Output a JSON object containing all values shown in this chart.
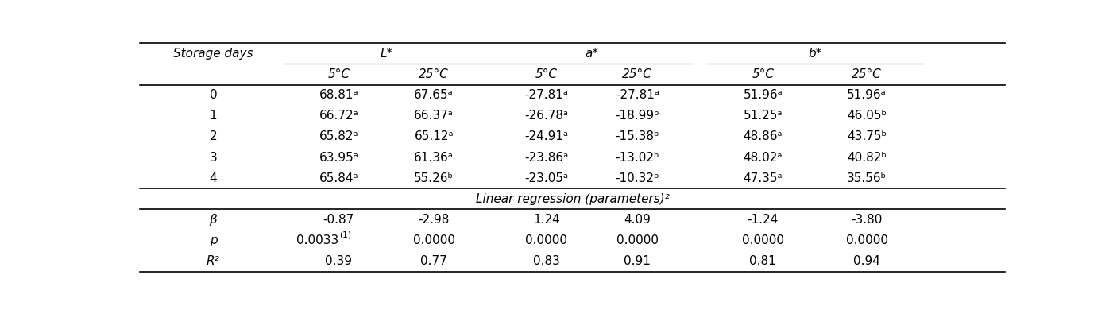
{
  "col_widths_label": [
    "Storage days",
    "L*",
    "",
    "a*",
    "",
    "b*",
    ""
  ],
  "col_header2": [
    "",
    "5°C",
    "25°C",
    "5°C",
    "25°C",
    "5°C",
    "25°C"
  ],
  "data_rows": [
    [
      "0",
      "68.81ᵃ",
      "67.65ᵃ",
      "-27.81ᵃ",
      "-27.81ᵃ",
      "51.96ᵃ",
      "51.96ᵃ"
    ],
    [
      "1",
      "66.72ᵃ",
      "66.37ᵃ",
      "-26.78ᵃ",
      "-18.99ᵇ",
      "51.25ᵃ",
      "46.05ᵇ"
    ],
    [
      "2",
      "65.82ᵃ",
      "65.12ᵃ",
      "-24.91ᵃ",
      "-15.38ᵇ",
      "48.86ᵃ",
      "43.75ᵇ"
    ],
    [
      "3",
      "63.95ᵃ",
      "61.36ᵃ",
      "-23.86ᵃ",
      "-13.02ᵇ",
      "48.02ᵃ",
      "40.82ᵇ"
    ],
    [
      "4",
      "65.84ᵃ",
      "55.26ᵇ",
      "-23.05ᵃ",
      "-10.32ᵇ",
      "47.35ᵃ",
      "35.56ᵇ"
    ]
  ],
  "regression_label": "Linear regression (parameters)²",
  "regression_rows": [
    [
      "β",
      "-0.87",
      "-2.98",
      "1.24",
      "4.09",
      "-1.24",
      "-3.80"
    ],
    [
      "p",
      "0.0033⁽¹⁾",
      "0.0000",
      "0.0000",
      "0.0000",
      "0.0000",
      "0.0000"
    ],
    [
      "R²",
      "0.39",
      "0.77",
      "0.83",
      "0.91",
      "0.81",
      "0.94"
    ]
  ],
  "p_value_normal": "0.0033",
  "p_value_super": "(1)",
  "bg_color": "#ffffff",
  "text_color": "#000000",
  "font_size": 11
}
